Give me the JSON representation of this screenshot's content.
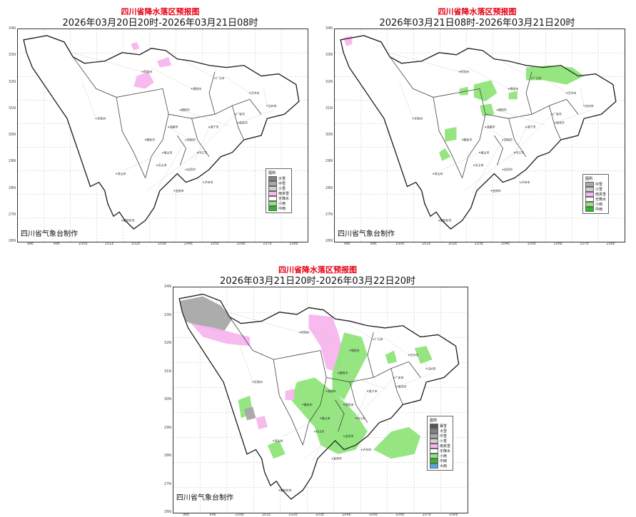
{
  "credit": "四川省气象台制作",
  "legend_title": "图例",
  "lat_labels": [
    "34N",
    "33N",
    "32N",
    "31N",
    "30N",
    "29N",
    "28N",
    "27N",
    "26N"
  ],
  "lon_labels": [
    "98E",
    "99E",
    "100E",
    "101E",
    "102E",
    "103E",
    "104E",
    "105E",
    "106E",
    "107E",
    "108E"
  ],
  "cities": [
    "阿坝州",
    "甘孜州",
    "绵阳市",
    "广元市",
    "巴中市",
    "达州市",
    "南充市",
    "德阳市",
    "成都市",
    "遂宁市",
    "广安市",
    "资阳市",
    "内江市",
    "眉山市",
    "雅安市",
    "乐山市",
    "自贡市",
    "泸州市",
    "宜宾市",
    "凉山州",
    "攀枝花市"
  ],
  "colors": {
    "heavy_snow": "#555555",
    "big_snow": "#808080",
    "mid_snow": "#a8a8a8",
    "light_snow": "#cfcfcf",
    "sleet": "#f7b6ee",
    "no_precip": "#ffffff",
    "light_rain": "#8fe47a",
    "mid_rain": "#2fb82f",
    "big_rain": "#52a8ea"
  },
  "panels": [
    {
      "title": "四川省降水落区预报图",
      "subtitle": "2026年03月20日20时-2026年03月21日08时",
      "legend": [
        {
          "label": "大雪",
          "color": "#808080"
        },
        {
          "label": "中雪",
          "color": "#a8a8a8"
        },
        {
          "label": "小雪",
          "color": "#cfcfcf"
        },
        {
          "label": "雨夹雪",
          "color": "#f7b6ee"
        },
        {
          "label": "无降水",
          "color": "#ffffff"
        },
        {
          "label": "小雨",
          "color": "#8fe47a"
        },
        {
          "label": "中雨",
          "color": "#2fb82f"
        }
      ]
    },
    {
      "title": "四川省降水落区预报图",
      "subtitle": "2026年03月21日08时-2026年03月21日20时",
      "legend": [
        {
          "label": "中雪",
          "color": "#a8a8a8"
        },
        {
          "label": "小雪",
          "color": "#cfcfcf"
        },
        {
          "label": "雨夹雪",
          "color": "#f7b6ee"
        },
        {
          "label": "无降水",
          "color": "#ffffff"
        },
        {
          "label": "小雨",
          "color": "#8fe47a"
        },
        {
          "label": "中雨",
          "color": "#2fb82f"
        }
      ]
    },
    {
      "title": "四川省降水落区预报图",
      "subtitle": "2026年03月21日20时-2026年03月22日20时",
      "legend": [
        {
          "label": "暴雪",
          "color": "#555555"
        },
        {
          "label": "大雪",
          "color": "#808080"
        },
        {
          "label": "中雪",
          "color": "#a8a8a8"
        },
        {
          "label": "小雪",
          "color": "#cfcfcf"
        },
        {
          "label": "雨夹雪",
          "color": "#f7b6ee"
        },
        {
          "label": "无降水",
          "color": "#ffffff"
        },
        {
          "label": "小雨",
          "color": "#8fe47a"
        },
        {
          "label": "中雨",
          "color": "#2fb82f"
        },
        {
          "label": "大雨",
          "color": "#52a8ea"
        }
      ]
    }
  ]
}
